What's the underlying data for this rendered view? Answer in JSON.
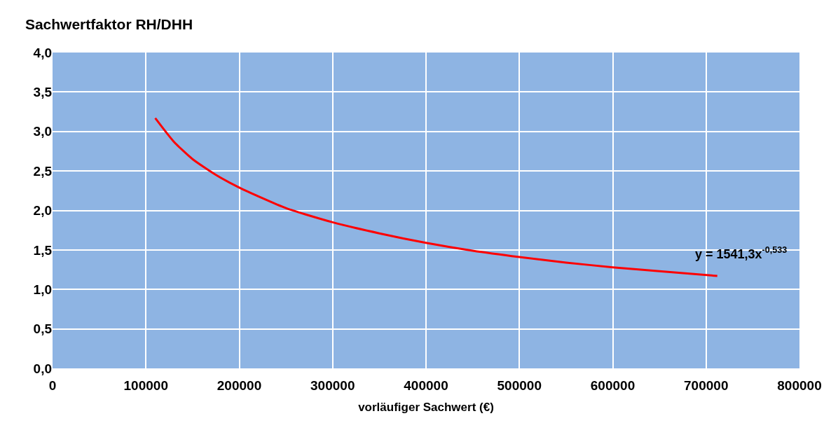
{
  "chart_data": {
    "type": "line",
    "title": "Sachwertfaktor RH/DHH",
    "xlabel": "vorläufiger Sachwert (€)",
    "x": [
      110000,
      130000,
      150000,
      175000,
      200000,
      250000,
      300000,
      350000,
      400000,
      450000,
      500000,
      550000,
      600000,
      650000,
      712000
    ],
    "series": [
      {
        "color": "#ff0000",
        "values": [
          3.17,
          2.87,
          2.65,
          2.45,
          2.29,
          2.03,
          1.85,
          1.71,
          1.59,
          1.49,
          1.41,
          1.34,
          1.28,
          1.23,
          1.17
        ]
      }
    ],
    "xlim": [
      0,
      800000
    ],
    "xticks": [
      0,
      100000,
      200000,
      300000,
      400000,
      500000,
      600000,
      700000,
      800000
    ],
    "ylim": [
      0,
      4
    ],
    "yticks": [
      {
        "value": 0,
        "label": "0,0"
      },
      {
        "value": 0.5,
        "label": "0,5"
      },
      {
        "value": 1,
        "label": "1,0"
      },
      {
        "value": 1.5,
        "label": "1,5"
      },
      {
        "value": 2,
        "label": "2,0"
      },
      {
        "value": 2.5,
        "label": "2,5"
      },
      {
        "value": 3,
        "label": "3,0"
      },
      {
        "value": 3.5,
        "label": "3,5"
      },
      {
        "value": 4,
        "label": "4,0"
      }
    ],
    "annotations": [
      "y = 1541,3x$^{-0,533}$"
    ],
    "grid": true,
    "marker": "none",
    "line_style": "solid"
  }
}
